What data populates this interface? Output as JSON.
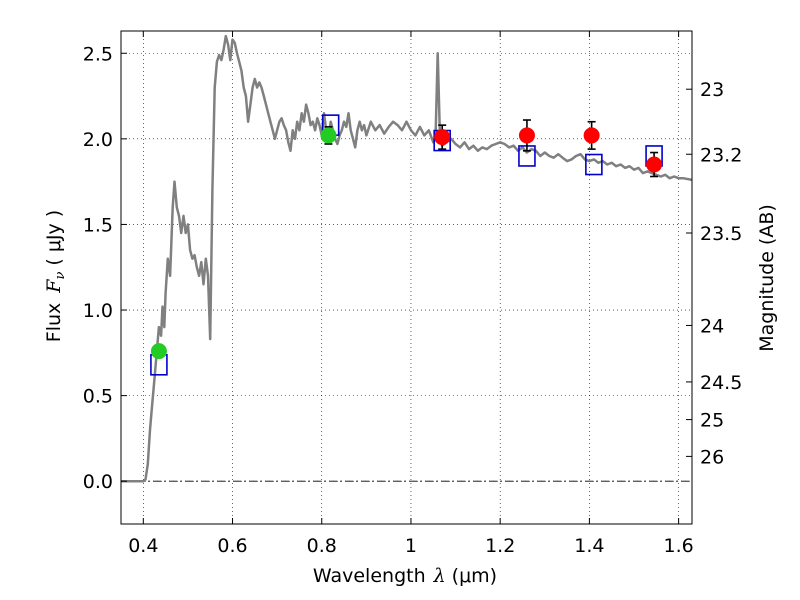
{
  "chart_data": {
    "type": "scatter",
    "xlabel": "Wavelength",
    "xlabel_symbol": "λ",
    "xlabel_unit": "(μm)",
    "ylabel": "Flux",
    "ylabel_symbol": "F",
    "ylabel_subscript": "ν",
    "ylabel_unit": "( μJy )",
    "y2label": "Magnitude (AB)",
    "xlim": [
      0.35,
      1.63
    ],
    "ylim": [
      -0.25,
      2.63
    ],
    "grid": true,
    "x_ticks": [
      0.4,
      0.6,
      0.8,
      1,
      1.2,
      1.4,
      1.6
    ],
    "x_tick_labels": [
      "0.4",
      "0.6",
      "0.8",
      "1",
      "1.2",
      "1.4",
      "1.6"
    ],
    "y_ticks": [
      0.0,
      0.5,
      1.0,
      1.5,
      2.0,
      2.5
    ],
    "y_tick_labels": [
      "0.0",
      "0.5",
      "1.0",
      "1.5",
      "2.0",
      "2.5"
    ],
    "magnitude_ticks": [
      {
        "label": "23",
        "flux": 2.29
      },
      {
        "label": "23.2",
        "flux": 1.91
      },
      {
        "label": "23.5",
        "flux": 1.45
      },
      {
        "label": "24",
        "flux": 0.91
      },
      {
        "label": "24.5",
        "flux": 0.58
      },
      {
        "label": "25",
        "flux": 0.36
      },
      {
        "label": "26",
        "flux": 0.145
      }
    ],
    "series": [
      {
        "kind": "model-spectrum",
        "color": "#808080",
        "points": [
          [
            0.35,
            0.0
          ],
          [
            0.4,
            0.0
          ],
          [
            0.405,
            0.01
          ],
          [
            0.41,
            0.1
          ],
          [
            0.415,
            0.3
          ],
          [
            0.42,
            0.45
          ],
          [
            0.425,
            0.6
          ],
          [
            0.43,
            0.75
          ],
          [
            0.435,
            0.9
          ],
          [
            0.44,
            0.85
          ],
          [
            0.443,
            1.02
          ],
          [
            0.447,
            0.9
          ],
          [
            0.45,
            1.1
          ],
          [
            0.455,
            1.3
          ],
          [
            0.46,
            1.2
          ],
          [
            0.463,
            1.4
          ],
          [
            0.466,
            1.6
          ],
          [
            0.47,
            1.75
          ],
          [
            0.475,
            1.6
          ],
          [
            0.48,
            1.55
          ],
          [
            0.485,
            1.45
          ],
          [
            0.49,
            1.55
          ],
          [
            0.495,
            1.45
          ],
          [
            0.5,
            1.5
          ],
          [
            0.505,
            1.35
          ],
          [
            0.51,
            1.3
          ],
          [
            0.515,
            1.32
          ],
          [
            0.52,
            1.25
          ],
          [
            0.525,
            1.2
          ],
          [
            0.53,
            1.28
          ],
          [
            0.535,
            1.15
          ],
          [
            0.54,
            1.3
          ],
          [
            0.545,
            1.2
          ],
          [
            0.55,
            0.83
          ],
          [
            0.555,
            1.7
          ],
          [
            0.56,
            2.3
          ],
          [
            0.565,
            2.45
          ],
          [
            0.57,
            2.49
          ],
          [
            0.575,
            2.46
          ],
          [
            0.58,
            2.52
          ],
          [
            0.585,
            2.6
          ],
          [
            0.59,
            2.55
          ],
          [
            0.595,
            2.46
          ],
          [
            0.6,
            2.58
          ],
          [
            0.605,
            2.56
          ],
          [
            0.61,
            2.5
          ],
          [
            0.615,
            2.45
          ],
          [
            0.62,
            2.4
          ],
          [
            0.625,
            2.3
          ],
          [
            0.63,
            2.25
          ],
          [
            0.635,
            2.1
          ],
          [
            0.64,
            2.2
          ],
          [
            0.645,
            2.3
          ],
          [
            0.65,
            2.35
          ],
          [
            0.655,
            2.3
          ],
          [
            0.66,
            2.33
          ],
          [
            0.665,
            2.3
          ],
          [
            0.67,
            2.25
          ],
          [
            0.675,
            2.2
          ],
          [
            0.68,
            2.15
          ],
          [
            0.685,
            2.1
          ],
          [
            0.69,
            2.05
          ],
          [
            0.695,
            2.0
          ],
          [
            0.7,
            2.05
          ],
          [
            0.705,
            2.1
          ],
          [
            0.71,
            2.12
          ],
          [
            0.715,
            2.08
          ],
          [
            0.72,
            2.05
          ],
          [
            0.725,
            1.98
          ],
          [
            0.73,
            1.93
          ],
          [
            0.735,
            2.05
          ],
          [
            0.74,
            2.0
          ],
          [
            0.745,
            2.1
          ],
          [
            0.75,
            2.05
          ],
          [
            0.755,
            2.15
          ],
          [
            0.76,
            2.1
          ],
          [
            0.765,
            2.2
          ],
          [
            0.77,
            2.15
          ],
          [
            0.775,
            2.08
          ],
          [
            0.78,
            2.1
          ],
          [
            0.785,
            2.05
          ],
          [
            0.79,
            2.12
          ],
          [
            0.795,
            2.08
          ],
          [
            0.8,
            2.02
          ],
          [
            0.805,
            2.15
          ],
          [
            0.81,
            2.05
          ],
          [
            0.815,
            2.0
          ],
          [
            0.82,
            2.1
          ],
          [
            0.825,
            2.05
          ],
          [
            0.83,
            2.0
          ],
          [
            0.835,
            1.97
          ],
          [
            0.84,
            2.02
          ],
          [
            0.845,
            2.05
          ],
          [
            0.85,
            2.1
          ],
          [
            0.855,
            2.07
          ],
          [
            0.86,
            2.15
          ],
          [
            0.865,
            2.05
          ],
          [
            0.87,
            2.0
          ],
          [
            0.875,
            1.95
          ],
          [
            0.88,
            2.05
          ],
          [
            0.885,
            2.1
          ],
          [
            0.89,
            2.05
          ],
          [
            0.895,
            2.08
          ],
          [
            0.9,
            2.02
          ],
          [
            0.91,
            2.1
          ],
          [
            0.92,
            2.05
          ],
          [
            0.93,
            2.08
          ],
          [
            0.94,
            2.03
          ],
          [
            0.95,
            2.07
          ],
          [
            0.96,
            2.1
          ],
          [
            0.97,
            2.08
          ],
          [
            0.98,
            2.05
          ],
          [
            0.99,
            2.1
          ],
          [
            1.0,
            2.05
          ],
          [
            1.01,
            2.02
          ],
          [
            1.02,
            2.07
          ],
          [
            1.03,
            2.02
          ],
          [
            1.04,
            2.05
          ],
          [
            1.05,
            1.98
          ],
          [
            1.055,
            2.0
          ],
          [
            1.06,
            2.5
          ],
          [
            1.065,
            2.0
          ],
          [
            1.07,
            1.96
          ],
          [
            1.08,
            1.98
          ],
          [
            1.09,
            2.0
          ],
          [
            1.1,
            1.97
          ],
          [
            1.11,
            1.95
          ],
          [
            1.12,
            1.98
          ],
          [
            1.13,
            1.94
          ],
          [
            1.14,
            1.96
          ],
          [
            1.15,
            1.93
          ],
          [
            1.16,
            1.95
          ],
          [
            1.17,
            1.94
          ],
          [
            1.18,
            1.96
          ],
          [
            1.19,
            1.97
          ],
          [
            1.2,
            1.98
          ],
          [
            1.21,
            1.97
          ],
          [
            1.22,
            1.95
          ],
          [
            1.23,
            1.96
          ],
          [
            1.24,
            1.93
          ],
          [
            1.25,
            1.95
          ],
          [
            1.26,
            1.92
          ],
          [
            1.27,
            1.94
          ],
          [
            1.28,
            1.93
          ],
          [
            1.29,
            1.9
          ],
          [
            1.3,
            1.92
          ],
          [
            1.31,
            1.9
          ],
          [
            1.32,
            1.89
          ],
          [
            1.33,
            1.91
          ],
          [
            1.34,
            1.89
          ],
          [
            1.35,
            1.87
          ],
          [
            1.36,
            1.88
          ],
          [
            1.37,
            1.9
          ],
          [
            1.38,
            1.91
          ],
          [
            1.39,
            1.88
          ],
          [
            1.4,
            1.87
          ],
          [
            1.41,
            1.88
          ],
          [
            1.42,
            1.86
          ],
          [
            1.43,
            1.87
          ],
          [
            1.44,
            1.85
          ],
          [
            1.45,
            1.86
          ],
          [
            1.46,
            1.84
          ],
          [
            1.47,
            1.85
          ],
          [
            1.48,
            1.83
          ],
          [
            1.49,
            1.84
          ],
          [
            1.5,
            1.82
          ],
          [
            1.51,
            1.83
          ],
          [
            1.52,
            1.8
          ],
          [
            1.53,
            1.81
          ],
          [
            1.54,
            1.8
          ],
          [
            1.55,
            1.79
          ],
          [
            1.56,
            1.78
          ],
          [
            1.57,
            1.79
          ],
          [
            1.58,
            1.77
          ],
          [
            1.59,
            1.78
          ],
          [
            1.6,
            1.77
          ],
          [
            1.61,
            1.77
          ],
          [
            1.63,
            1.76
          ]
        ]
      },
      {
        "kind": "model-photometry",
        "marker": "open-square",
        "color": "#0000cc",
        "points": [
          [
            0.435,
            0.68
          ],
          [
            0.82,
            2.08
          ],
          [
            1.07,
            1.99
          ],
          [
            1.26,
            1.9
          ],
          [
            1.41,
            1.85
          ],
          [
            1.545,
            1.9
          ]
        ]
      },
      {
        "kind": "observed-photometry",
        "marker": "filled-circle",
        "color": "#22cc22",
        "points": [
          {
            "x": 0.435,
            "y": 0.76,
            "err": 0.03
          },
          {
            "x": 0.815,
            "y": 2.02,
            "err": 0.05
          }
        ]
      },
      {
        "kind": "observed-photometry",
        "marker": "filled-circle",
        "color": "#ff0000",
        "points": [
          {
            "x": 1.07,
            "y": 2.01,
            "err": 0.07
          },
          {
            "x": 1.26,
            "y": 2.02,
            "err": 0.09
          },
          {
            "x": 1.405,
            "y": 2.02,
            "err": 0.08
          },
          {
            "x": 1.545,
            "y": 1.85,
            "err": 0.07
          }
        ]
      }
    ]
  }
}
